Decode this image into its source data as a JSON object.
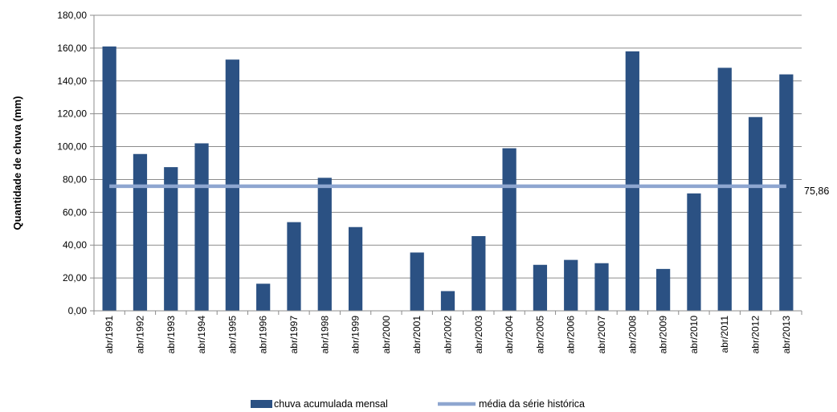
{
  "chart_data": {
    "type": "bar",
    "ylabel": "Quantidade de chuva (mm)",
    "ylim": [
      0,
      180
    ],
    "yticks": [
      "0,00",
      "20,00",
      "40,00",
      "60,00",
      "80,00",
      "100,00",
      "120,00",
      "140,00",
      "160,00",
      "180,00"
    ],
    "grid": true,
    "legend_position": "bottom",
    "categories": [
      "abr/1991",
      "abr/1992",
      "abr/1993",
      "abr/1994",
      "abr/1995",
      "abr/1996",
      "abr/1997",
      "abr/1998",
      "abr/1999",
      "abr/2000",
      "abr/2001",
      "abr/2002",
      "abr/2003",
      "abr/2004",
      "abr/2005",
      "abr/2006",
      "abr/2007",
      "abr/2008",
      "abr/2009",
      "abr/2010",
      "abr/2011",
      "abr/2012",
      "abr/2013"
    ],
    "series": [
      {
        "name": "chuva acumulada mensal",
        "type": "bar",
        "color": "#2b5183",
        "values": [
          161,
          95.5,
          87.5,
          102,
          153,
          16.5,
          54,
          81,
          51,
          0,
          35.5,
          12,
          45.5,
          99,
          28,
          31,
          29,
          158,
          25.5,
          71.5,
          148,
          118,
          144
        ]
      },
      {
        "name": "média da série histórica",
        "type": "line",
        "color": "#8ea6d0",
        "value": 75.86,
        "label": "75,86"
      }
    ]
  }
}
